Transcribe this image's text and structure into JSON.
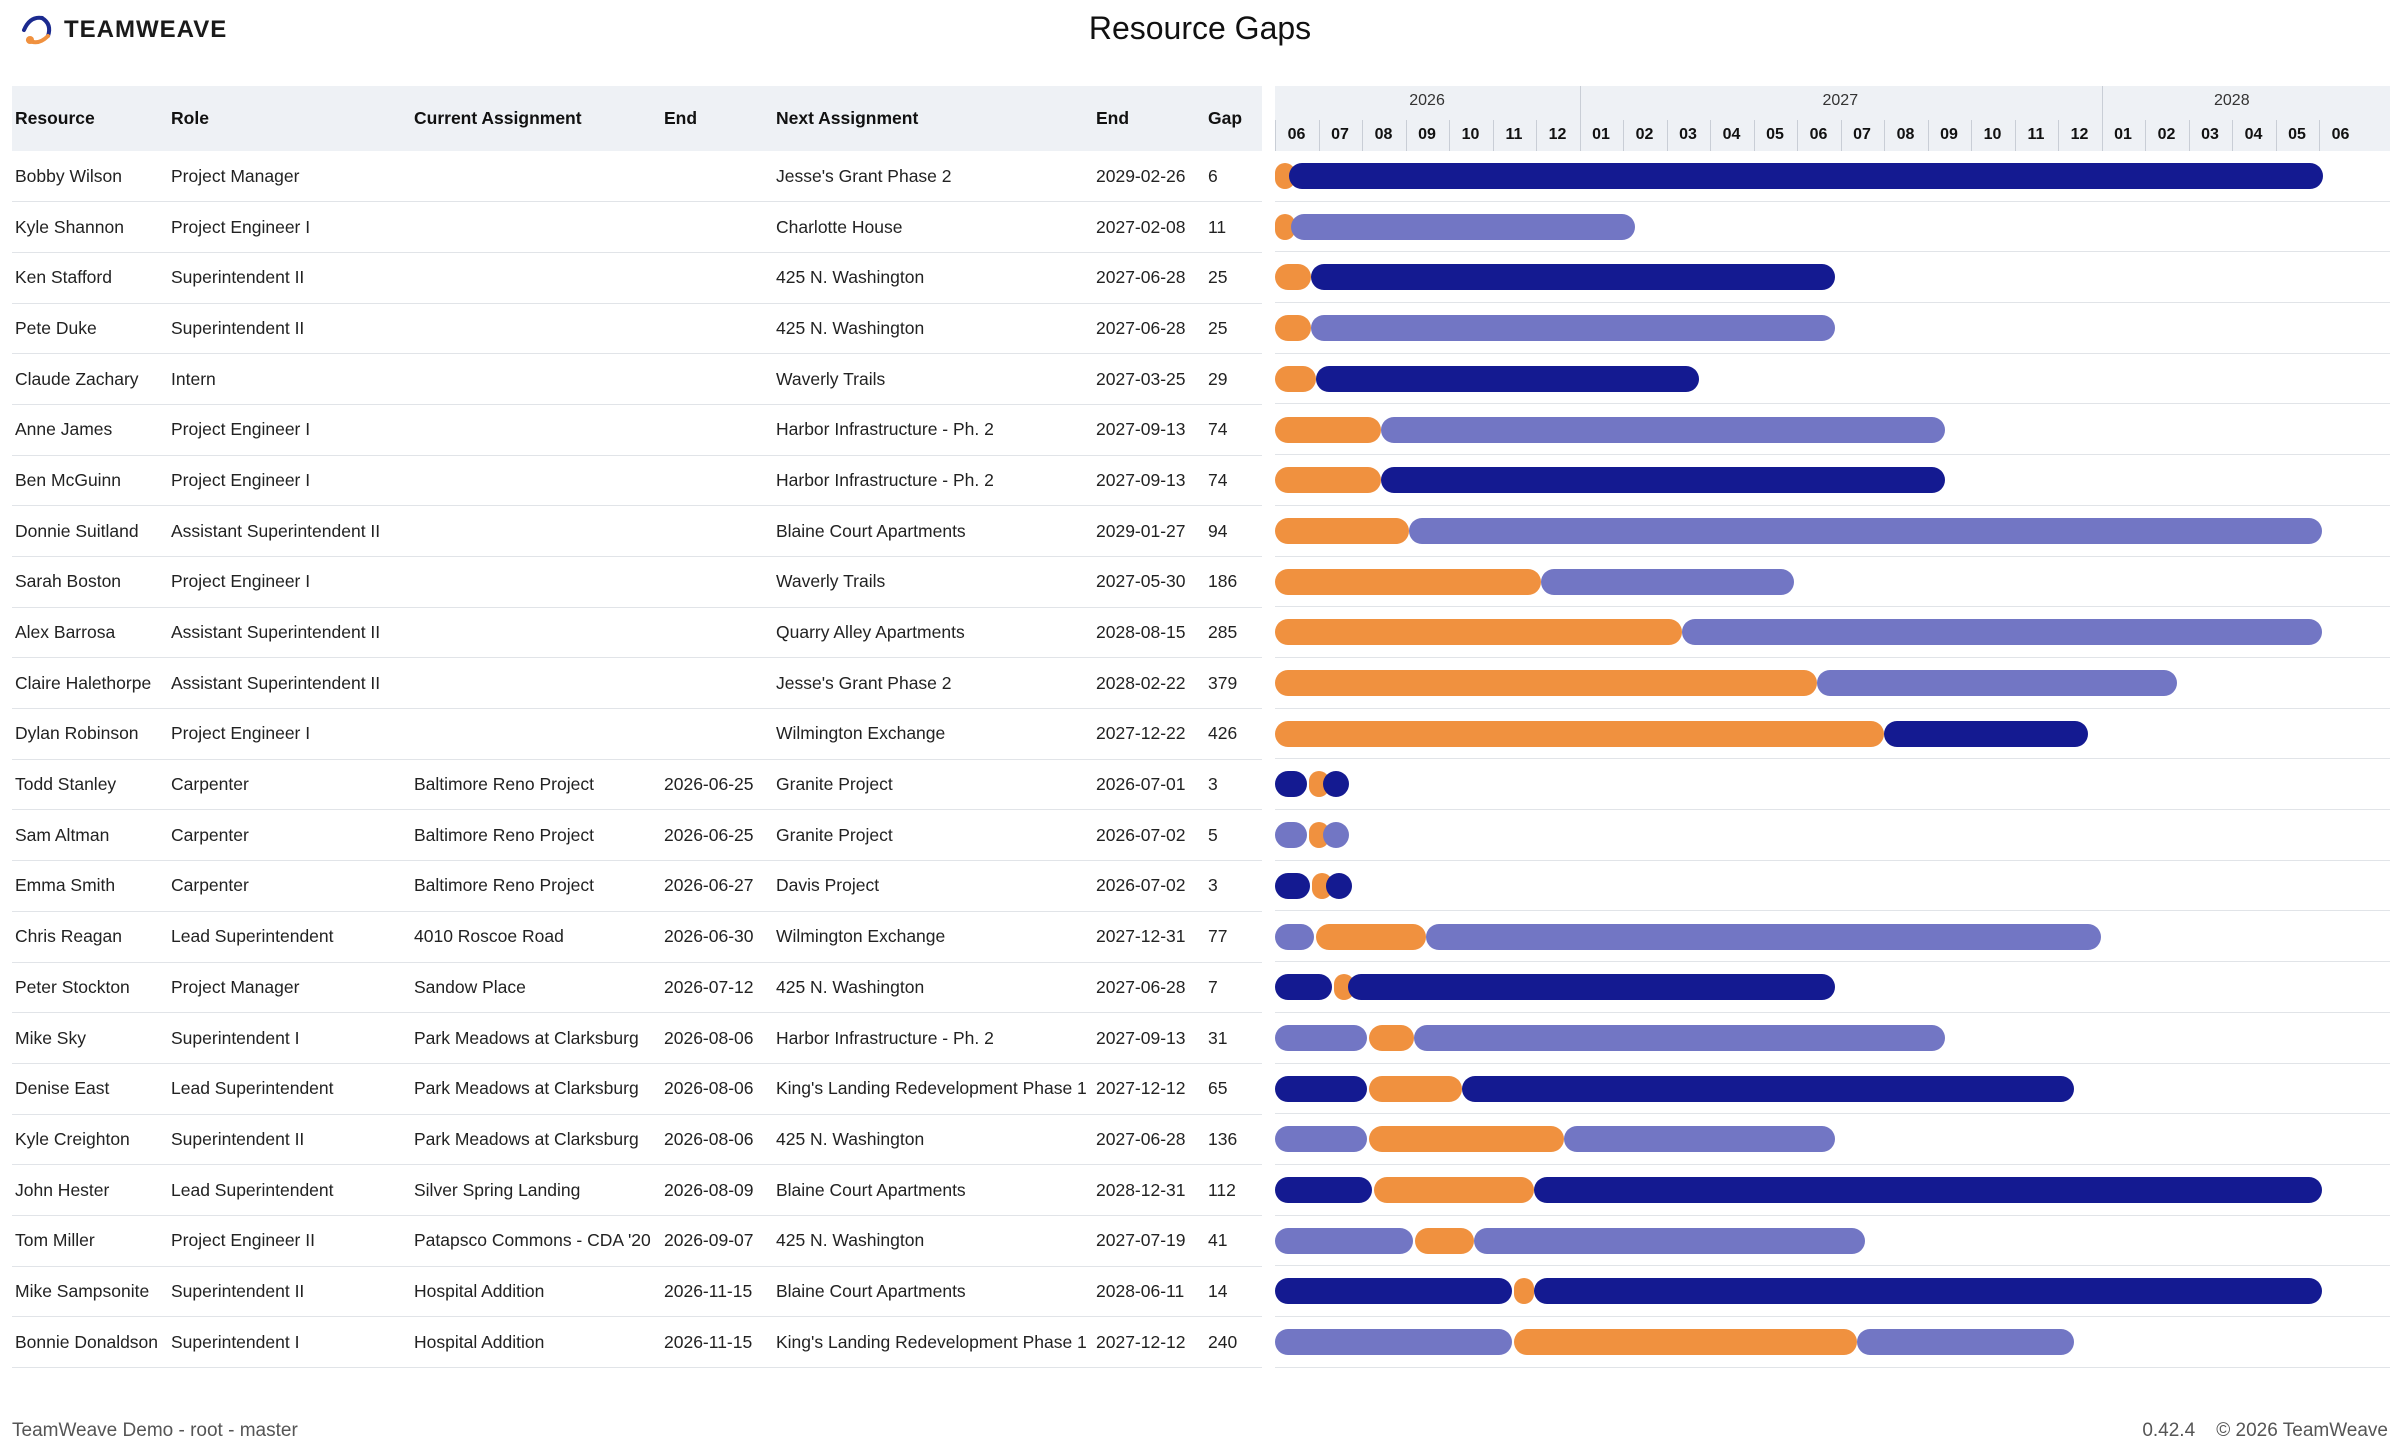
{
  "header": {
    "brand": "TEAMWEAVE",
    "title": "Resource Gaps"
  },
  "table": {
    "columns": [
      "Resource",
      "Role",
      "Current Assignment",
      "End",
      "Next Assignment",
      "End",
      "Gap"
    ],
    "rows": [
      {
        "resource": "Bobby Wilson",
        "role": "Project Manager",
        "current": "",
        "cur_end": "",
        "next": "Jesse's Grant Phase 2",
        "next_end": "2029-02-26",
        "gap": "6"
      },
      {
        "resource": "Kyle Shannon",
        "role": "Project Engineer I",
        "current": "",
        "cur_end": "",
        "next": "Charlotte House",
        "next_end": "2027-02-08",
        "gap": "11"
      },
      {
        "resource": "Ken Stafford",
        "role": "Superintendent II",
        "current": "",
        "cur_end": "",
        "next": "425 N. Washington",
        "next_end": "2027-06-28",
        "gap": "25"
      },
      {
        "resource": "Pete Duke",
        "role": "Superintendent II",
        "current": "",
        "cur_end": "",
        "next": "425 N. Washington",
        "next_end": "2027-06-28",
        "gap": "25"
      },
      {
        "resource": "Claude Zachary",
        "role": "Intern",
        "current": "",
        "cur_end": "",
        "next": "Waverly Trails",
        "next_end": "2027-03-25",
        "gap": "29"
      },
      {
        "resource": "Anne James",
        "role": "Project Engineer I",
        "current": "",
        "cur_end": "",
        "next": "Harbor Infrastructure - Ph. 2",
        "next_end": "2027-09-13",
        "gap": "74"
      },
      {
        "resource": "Ben McGuinn",
        "role": "Project Engineer I",
        "current": "",
        "cur_end": "",
        "next": "Harbor Infrastructure - Ph. 2",
        "next_end": "2027-09-13",
        "gap": "74"
      },
      {
        "resource": "Donnie Suitland",
        "role": "Assistant Superintendent II",
        "current": "",
        "cur_end": "",
        "next": "Blaine Court Apartments",
        "next_end": "2029-01-27",
        "gap": "94"
      },
      {
        "resource": "Sarah Boston",
        "role": "Project Engineer I",
        "current": "",
        "cur_end": "",
        "next": "Waverly Trails",
        "next_end": "2027-05-30",
        "gap": "186"
      },
      {
        "resource": "Alex Barrosa",
        "role": "Assistant Superintendent II",
        "current": "",
        "cur_end": "",
        "next": "Quarry Alley Apartments",
        "next_end": "2028-08-15",
        "gap": "285"
      },
      {
        "resource": "Claire Halethorpe",
        "role": "Assistant Superintendent II",
        "current": "",
        "cur_end": "",
        "next": "Jesse's Grant Phase 2",
        "next_end": "2028-02-22",
        "gap": "379"
      },
      {
        "resource": "Dylan Robinson",
        "role": "Project Engineer I",
        "current": "",
        "cur_end": "",
        "next": "Wilmington Exchange",
        "next_end": "2027-12-22",
        "gap": "426"
      },
      {
        "resource": "Todd Stanley",
        "role": "Carpenter",
        "current": "Baltimore Reno Project",
        "cur_end": "2026-06-25",
        "next": "Granite Project",
        "next_end": "2026-07-01",
        "gap": "3"
      },
      {
        "resource": "Sam Altman",
        "role": "Carpenter",
        "current": "Baltimore Reno Project",
        "cur_end": "2026-06-25",
        "next": "Granite Project",
        "next_end": "2026-07-02",
        "gap": "5"
      },
      {
        "resource": "Emma Smith",
        "role": "Carpenter",
        "current": "Baltimore Reno Project",
        "cur_end": "2026-06-27",
        "next": "Davis Project",
        "next_end": "2026-07-02",
        "gap": "3"
      },
      {
        "resource": "Chris Reagan",
        "role": "Lead Superintendent",
        "current": "4010 Roscoe Road",
        "cur_end": "2026-06-30",
        "next": "Wilmington Exchange",
        "next_end": "2027-12-31",
        "gap": "77"
      },
      {
        "resource": "Peter Stockton",
        "role": "Project Manager",
        "current": "Sandow Place",
        "cur_end": "2026-07-12",
        "next": "425 N. Washington",
        "next_end": "2027-06-28",
        "gap": "7"
      },
      {
        "resource": "Mike Sky",
        "role": "Superintendent I",
        "current": "Park Meadows at Clarksburg",
        "cur_end": "2026-08-06",
        "next": "Harbor Infrastructure - Ph. 2",
        "next_end": "2027-09-13",
        "gap": "31"
      },
      {
        "resource": "Denise East",
        "role": "Lead Superintendent",
        "current": "Park Meadows at Clarksburg",
        "cur_end": "2026-08-06",
        "next": "King's Landing Redevelopment Phase 1",
        "next_end": "2027-12-12",
        "gap": "65"
      },
      {
        "resource": "Kyle Creighton",
        "role": "Superintendent II",
        "current": "Park Meadows at Clarksburg",
        "cur_end": "2026-08-06",
        "next": "425 N. Washington",
        "next_end": "2027-06-28",
        "gap": "136"
      },
      {
        "resource": "John Hester",
        "role": "Lead Superintendent",
        "current": "Silver Spring Landing",
        "cur_end": "2026-08-09",
        "next": "Blaine Court Apartments",
        "next_end": "2028-12-31",
        "gap": "112"
      },
      {
        "resource": "Tom Miller",
        "role": "Project Engineer II",
        "current": "Patapsco Commons - CDA '20",
        "cur_end": "2026-09-07",
        "next": "425 N. Washington",
        "next_end": "2027-07-19",
        "gap": "41"
      },
      {
        "resource": "Mike Sampsonite",
        "role": "Superintendent II",
        "current": "Hospital Addition",
        "cur_end": "2026-11-15",
        "next": "Blaine Court Apartments",
        "next_end": "2028-06-11",
        "gap": "14"
      },
      {
        "resource": "Bonnie Donaldson",
        "role": "Superintendent I",
        "current": "Hospital Addition",
        "cur_end": "2026-11-15",
        "next": "King's Landing Redevelopment Phase 1",
        "next_end": "2027-12-12",
        "gap": "240"
      }
    ]
  },
  "timeline": {
    "years": [
      {
        "label": "2026",
        "start_month": 0,
        "count": 7
      },
      {
        "label": "2027",
        "start_month": 7,
        "count": 12
      },
      {
        "label": "2028",
        "start_month": 19,
        "count": 6
      }
    ],
    "months": [
      "06",
      "07",
      "08",
      "09",
      "10",
      "11",
      "12",
      "01",
      "02",
      "03",
      "04",
      "05",
      "06",
      "07",
      "08",
      "09",
      "10",
      "11",
      "12",
      "01",
      "02",
      "03",
      "04",
      "05",
      "06"
    ],
    "range_start": "2026-06-01",
    "colors": {
      "gap": "#f0913f",
      "dark": "#141a91",
      "light": "#7276c4"
    }
  },
  "footer": {
    "left": "TeamWeave Demo - root - master",
    "version": "0.42.4",
    "copyright": "© 2026 TeamWeave"
  }
}
